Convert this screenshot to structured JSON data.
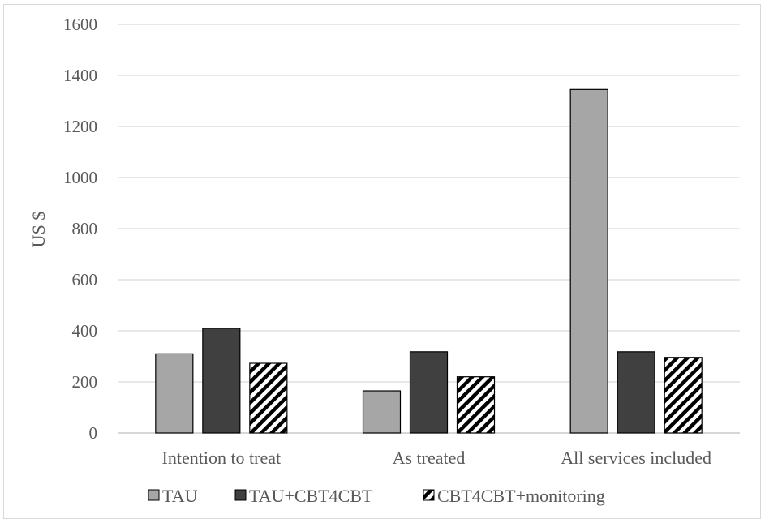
{
  "chart_data": {
    "type": "bar",
    "categories": [
      "Intention to treat",
      "As treated",
      "All services included"
    ],
    "series": [
      {
        "name": "TAU",
        "values": [
          310,
          165,
          1345
        ],
        "color": "#a6a6a6",
        "pattern": "solid"
      },
      {
        "name": "TAU+CBT4CBT",
        "values": [
          410,
          318,
          318
        ],
        "color": "#404040",
        "pattern": "solid"
      },
      {
        "name": "CBT4CBT+monitoring",
        "values": [
          273,
          220,
          296
        ],
        "color": "#000000",
        "pattern": "diagonal-stripes"
      }
    ],
    "ylabel": "US $",
    "xlabel": "",
    "ylim": [
      0,
      1600
    ],
    "yticks": [
      0,
      200,
      400,
      600,
      800,
      1000,
      1200,
      1400,
      1600
    ],
    "grid": true,
    "legend_position": "bottom"
  }
}
